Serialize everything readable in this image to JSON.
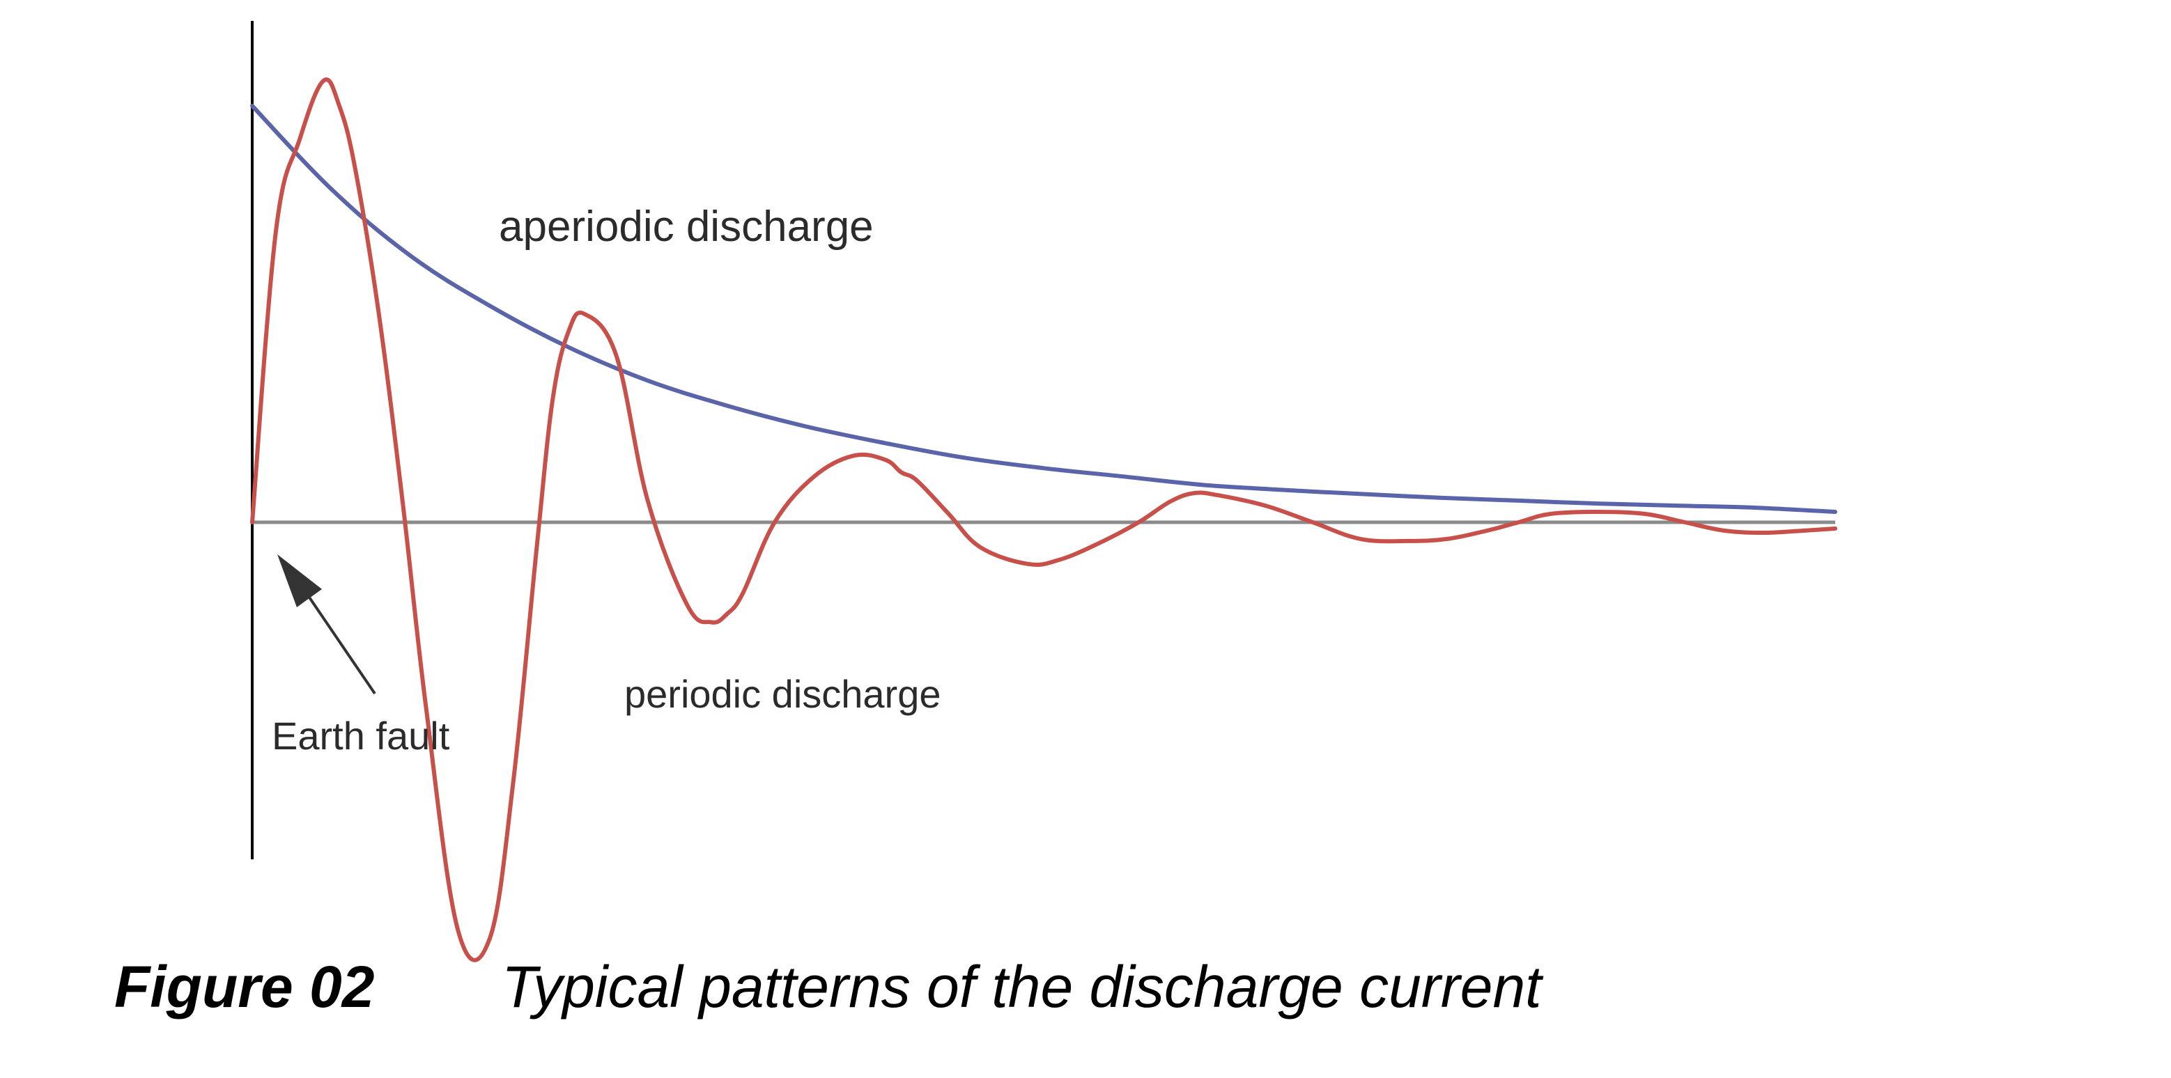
{
  "chart_data": {
    "type": "line",
    "title": "",
    "xlabel": "",
    "ylabel": "",
    "xlim": [
      0,
      10
    ],
    "ylim": [
      -1.05,
      1.1
    ],
    "grid": false,
    "legend": "none",
    "colors": {
      "axis": "#000000",
      "baseline": "#8a8a8a",
      "aperiodic": "#5a64a8",
      "periodic": "#c8504a",
      "text": "#2b2b2b",
      "arrow": "#333333"
    },
    "series": [
      {
        "key": "aperiodic",
        "x": [
          0,
          0.5,
          1,
          1.5,
          2,
          2.5,
          3,
          3.5,
          4,
          4.5,
          5,
          5.5,
          6,
          6.5,
          7,
          7.5,
          8,
          8.5,
          9,
          9.5,
          10
        ],
        "y": [
          1.0,
          0.8,
          0.64,
          0.52,
          0.42,
          0.34,
          0.28,
          0.23,
          0.19,
          0.155,
          0.13,
          0.11,
          0.09,
          0.078,
          0.068,
          0.059,
          0.052,
          0.045,
          0.04,
          0.035,
          0.025
        ]
      },
      {
        "key": "periodic",
        "x": [
          0,
          0.15,
          0.3,
          0.45,
          0.55,
          0.65,
          0.8,
          0.95,
          1.1,
          1.3,
          1.5,
          1.65,
          1.8,
          1.9,
          2.0,
          2.1,
          2.3,
          2.5,
          2.75,
          2.9,
          3.0,
          3.1,
          3.3,
          3.55,
          3.8,
          4.0,
          4.1,
          4.2,
          4.4,
          4.6,
          4.9,
          5.1,
          5.35,
          5.6,
          5.8,
          5.95,
          6.1,
          6.4,
          6.7,
          7.0,
          7.3,
          7.55,
          7.8,
          8.0,
          8.2,
          8.5,
          8.8,
          9.05,
          9.3,
          9.55,
          9.8,
          10.0
        ],
        "y": [
          0,
          0.7,
          0.92,
          1.06,
          1.0,
          0.85,
          0.5,
          0.05,
          -0.45,
          -0.98,
          -1.0,
          -0.62,
          -0.05,
          0.3,
          0.46,
          0.5,
          0.4,
          0.05,
          -0.2,
          -0.24,
          -0.22,
          -0.17,
          0.0,
          0.11,
          0.16,
          0.15,
          0.12,
          0.1,
          0.02,
          -0.06,
          -0.1,
          -0.09,
          -0.05,
          0.0,
          0.05,
          0.07,
          0.065,
          0.04,
          0.0,
          -0.04,
          -0.045,
          -0.04,
          -0.02,
          0.0,
          0.02,
          0.025,
          0.02,
          0.0,
          -0.02,
          -0.025,
          -0.02,
          -0.015
        ]
      }
    ],
    "annotations": {
      "aperiodic": "aperiodic discharge",
      "periodic": "periodic discharge",
      "earth_fault": "Earth fault"
    }
  },
  "caption": {
    "number": "Figure 02",
    "title": "Typical patterns of the discharge current"
  }
}
